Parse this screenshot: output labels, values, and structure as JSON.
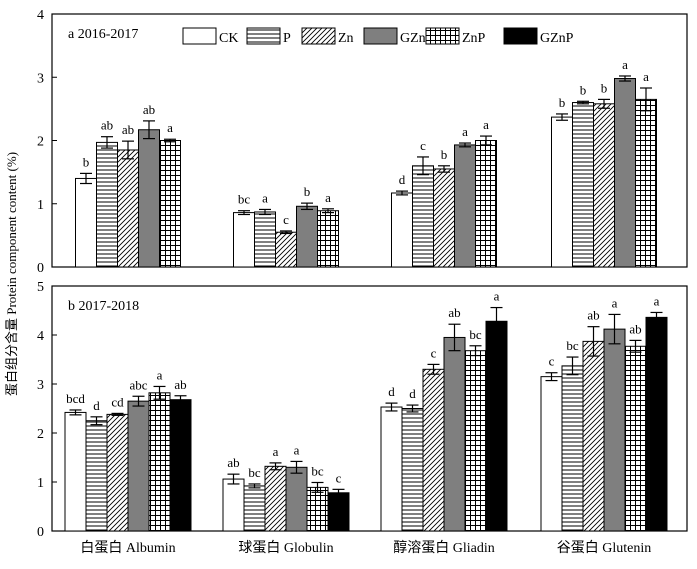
{
  "chart_data": {
    "type": "bar",
    "ylabel": "蛋白组分含量 Protein component content (%)",
    "categories": [
      "白蛋白 Albumin",
      "球蛋白 Globulin",
      "醇溶蛋白 Gliadin",
      "谷蛋白 Glutenin"
    ],
    "legend": {
      "placement": "top",
      "entries": [
        {
          "name": "CK",
          "pattern": "white"
        },
        {
          "name": "P",
          "pattern": "hlines"
        },
        {
          "name": "Zn",
          "pattern": "diag"
        },
        {
          "name": "GZn",
          "pattern": "gray"
        },
        {
          "name": "ZnP",
          "pattern": "grid"
        },
        {
          "name": "GZnP",
          "pattern": "black"
        }
      ]
    },
    "panels": [
      {
        "label": "a  2016-2017",
        "ylim": [
          0,
          4
        ],
        "yticks": [
          "0",
          "1",
          "2",
          "3",
          "4"
        ],
        "series": [
          {
            "name": "CK",
            "values": [
              1.4,
              0.86,
              1.17,
              2.37
            ],
            "errors": [
              0.08,
              0.03,
              0.03,
              0.05
            ],
            "letters": [
              "b",
              "bc",
              "d",
              "b"
            ]
          },
          {
            "name": "P",
            "values": [
              1.97,
              0.87,
              1.6,
              2.6
            ],
            "errors": [
              0.09,
              0.04,
              0.14,
              0.02
            ],
            "letters": [
              "ab",
              "a",
              "c",
              "b"
            ]
          },
          {
            "name": "Zn",
            "values": [
              1.85,
              0.55,
              1.55,
              2.58
            ],
            "errors": [
              0.14,
              0.02,
              0.05,
              0.07
            ],
            "letters": [
              "ab",
              "c",
              "b",
              "b"
            ]
          },
          {
            "name": "GZn",
            "values": [
              2.17,
              0.96,
              1.93,
              2.98
            ],
            "errors": [
              0.14,
              0.05,
              0.03,
              0.04
            ],
            "letters": [
              "ab",
              "b",
              "a",
              "a"
            ]
          },
          {
            "name": "ZnP",
            "values": [
              2.0,
              0.89,
              2.0,
              2.65
            ],
            "errors": [
              0.02,
              0.03,
              0.07,
              0.18
            ],
            "letters": [
              "a",
              "a",
              "a",
              "a"
            ]
          }
        ]
      },
      {
        "label": "b  2017-2018",
        "ylim": [
          0,
          5
        ],
        "yticks": [
          "0",
          "1",
          "2",
          "3",
          "4",
          "5"
        ],
        "series": [
          {
            "name": "CK",
            "values": [
              2.42,
              1.06,
              2.53,
              3.15
            ],
            "errors": [
              0.05,
              0.1,
              0.08,
              0.08
            ],
            "letters": [
              "bcd",
              "ab",
              "d",
              "c"
            ]
          },
          {
            "name": "P",
            "values": [
              2.25,
              0.92,
              2.5,
              3.37
            ],
            "errors": [
              0.08,
              0.04,
              0.07,
              0.18
            ],
            "letters": [
              "d",
              "bc",
              "d",
              "bc"
            ]
          },
          {
            "name": "Zn",
            "values": [
              2.38,
              1.32,
              3.3,
              3.87
            ],
            "errors": [
              0.02,
              0.07,
              0.1,
              0.3
            ],
            "letters": [
              "cd",
              "a",
              "c",
              "ab"
            ]
          },
          {
            "name": "GZn",
            "values": [
              2.65,
              1.3,
              3.95,
              4.12
            ],
            "errors": [
              0.1,
              0.12,
              0.27,
              0.3
            ],
            "letters": [
              "abc",
              "a",
              "ab",
              "a"
            ]
          },
          {
            "name": "ZnP",
            "values": [
              2.82,
              0.89,
              3.68,
              3.77
            ],
            "errors": [
              0.13,
              0.1,
              0.1,
              0.12
            ],
            "letters": [
              "a",
              "bc",
              "bc",
              "ab"
            ]
          },
          {
            "name": "GZnP",
            "values": [
              2.68,
              0.78,
              4.28,
              4.36
            ],
            "errors": [
              0.08,
              0.07,
              0.28,
              0.1
            ],
            "letters": [
              "ab",
              "c",
              "a",
              "a"
            ]
          }
        ]
      }
    ]
  }
}
